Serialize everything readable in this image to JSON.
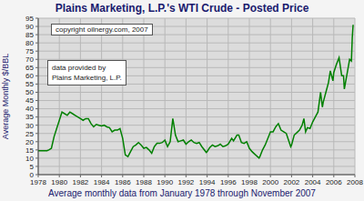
{
  "chart_data": {
    "type": "line",
    "title": "Plains Marketing, L.P.'s WTI Crude - Posted Price",
    "x_label": "Average monthly data from January 1978 through November 2007",
    "y_label": "Average Monthly $/BBL",
    "annotations": [
      "copyright oilnergy.com, 2007",
      "data provided by\nPlains Marketing, L.P."
    ],
    "color": "#008000",
    "grid": true,
    "x": [
      1978.0,
      1978.5,
      1978.83,
      1979.0,
      1979.25,
      1979.5,
      1979.75,
      1980.0,
      1980.25,
      1980.5,
      1980.75,
      1981.0,
      1981.25,
      1981.5,
      1981.75,
      1982.0,
      1982.25,
      1982.5,
      1982.75,
      1983.0,
      1983.25,
      1983.5,
      1983.75,
      1984.0,
      1984.25,
      1984.5,
      1984.75,
      1985.0,
      1985.25,
      1985.5,
      1985.75,
      1986.0,
      1986.25,
      1986.5,
      1986.75,
      1987.0,
      1987.25,
      1987.5,
      1987.75,
      1988.0,
      1988.25,
      1988.5,
      1988.75,
      1989.0,
      1989.25,
      1989.5,
      1989.75,
      1990.0,
      1990.25,
      1990.5,
      1990.75,
      1990.83,
      1991.0,
      1991.25,
      1991.5,
      1991.75,
      1992.0,
      1992.25,
      1992.5,
      1992.75,
      1993.0,
      1993.25,
      1993.5,
      1993.92,
      1994.0,
      1994.25,
      1994.5,
      1994.75,
      1995.0,
      1995.25,
      1995.5,
      1995.75,
      1996.0,
      1996.33,
      1996.5,
      1996.83,
      1997.0,
      1997.25,
      1997.5,
      1997.75,
      1998.0,
      1998.25,
      1998.5,
      1998.92,
      1999.0,
      1999.25,
      1999.5,
      1999.75,
      2000.0,
      2000.25,
      2000.5,
      2000.75,
      2001.0,
      2001.25,
      2001.5,
      2001.92,
      2002.0,
      2002.25,
      2002.5,
      2002.75,
      2003.0,
      2003.17,
      2003.33,
      2003.5,
      2003.75,
      2004.0,
      2004.25,
      2004.5,
      2004.75,
      2004.92,
      2005.0,
      2005.25,
      2005.5,
      2005.67,
      2005.92,
      2006.0,
      2006.25,
      2006.5,
      2006.75,
      2006.92,
      2007.0,
      2007.25,
      2007.5,
      2007.67,
      2007.75,
      2007.83
    ],
    "values": [
      14.5,
      14.5,
      14.5,
      15,
      16,
      23,
      28,
      33,
      38,
      37,
      36,
      38,
      37,
      36,
      35,
      34,
      33,
      34,
      34,
      31,
      29,
      30.5,
      30,
      29.5,
      30,
      29,
      28.5,
      26,
      27,
      27,
      28,
      22,
      12,
      11,
      14,
      17,
      18,
      19.5,
      18,
      16,
      16.5,
      15,
      13,
      17,
      19,
      19,
      19.5,
      21,
      17,
      20,
      34,
      31,
      24,
      20,
      20.5,
      21,
      18.5,
      20,
      21,
      19.5,
      19,
      19.5,
      17,
      13.5,
      14,
      16.5,
      18,
      17,
      17.5,
      18.5,
      17,
      17.5,
      18.5,
      22,
      20.5,
      24,
      24,
      19.5,
      19,
      20,
      16,
      14,
      12.5,
      10,
      11,
      15,
      18,
      22,
      26,
      26,
      29,
      31,
      27,
      26,
      25,
      17,
      18,
      24,
      25.5,
      27,
      30,
      34,
      26,
      28.5,
      28,
      32,
      35,
      38,
      50,
      41,
      44,
      50,
      56,
      63,
      57,
      62,
      67,
      71,
      60,
      60,
      52,
      61,
      70,
      69,
      83,
      91
    ],
    "xlim": [
      1978,
      2008
    ],
    "xticks": [
      1978,
      1980,
      1982,
      1984,
      1986,
      1988,
      1990,
      1992,
      1994,
      1996,
      1998,
      2000,
      2002,
      2004,
      2006,
      2008
    ],
    "ylim": [
      0,
      95
    ],
    "yticks": [
      0,
      5,
      10,
      15,
      20,
      25,
      30,
      35,
      40,
      45,
      50,
      55,
      60,
      65,
      70,
      75,
      80,
      85,
      90,
      95
    ]
  }
}
